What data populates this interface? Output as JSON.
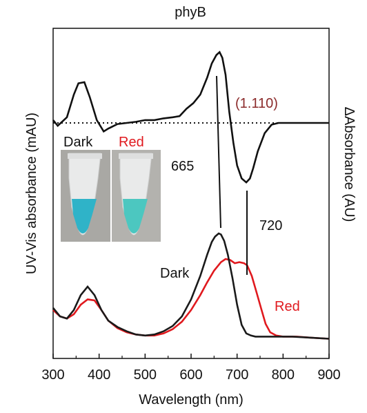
{
  "chart_data": {
    "type": "line",
    "title": "phyB",
    "xlabel": "Wavelength (nm)",
    "ylabel_left": "UV-Vis absorbance (mAU)",
    "ylabel_right": "ΔAbsorbance (AU)",
    "xlim": [
      300,
      900
    ],
    "x_ticks": [
      300,
      400,
      500,
      600,
      700,
      800,
      900
    ],
    "y_ticks_shown": false,
    "grid": false,
    "colors": {
      "dark": "#1a1a1a",
      "red": "#e0191e",
      "annotation": "#8b2a2a",
      "tube_dark": "#2fb3c8",
      "tube_red": "#4cc7c0"
    },
    "difference_panel": {
      "zero_line": "dotted",
      "ylim": [
        -1.2,
        1.3
      ],
      "x": [
        300,
        310,
        330,
        345,
        355,
        368,
        380,
        395,
        410,
        420,
        440,
        460,
        480,
        500,
        520,
        540,
        560,
        575,
        590,
        605,
        620,
        635,
        645,
        655,
        662,
        668,
        675,
        683,
        692,
        700,
        710,
        720,
        728,
        735,
        745,
        760,
        775,
        790,
        810,
        840,
        870,
        900
      ],
      "y": [
        0.05,
        -0.05,
        0.1,
        0.5,
        0.7,
        0.72,
        0.45,
        0.05,
        -0.15,
        -0.1,
        -0.02,
        0.0,
        0.02,
        0.05,
        0.05,
        0.08,
        0.1,
        0.12,
        0.25,
        0.35,
        0.5,
        0.8,
        1.05,
        1.2,
        1.25,
        1.15,
        0.85,
        0.2,
        -0.35,
        -0.75,
        -0.98,
        -1.05,
        -0.98,
        -0.8,
        -0.5,
        -0.18,
        -0.03,
        0.0,
        0.0,
        0.0,
        0.0,
        0.0
      ]
    },
    "absorbance_panel": {
      "ylim": [
        0,
        1.0
      ],
      "series": [
        {
          "name": "Dark",
          "color": "#1a1a1a",
          "x": [
            300,
            315,
            330,
            345,
            360,
            375,
            390,
            405,
            420,
            440,
            460,
            480,
            500,
            520,
            540,
            560,
            580,
            600,
            620,
            635,
            645,
            652,
            660,
            665,
            672,
            680,
            690,
            700,
            710,
            720,
            730,
            740,
            760,
            790,
            820,
            860,
            900
          ],
          "y": [
            0.3,
            0.22,
            0.2,
            0.28,
            0.42,
            0.5,
            0.42,
            0.28,
            0.18,
            0.12,
            0.08,
            0.05,
            0.04,
            0.05,
            0.08,
            0.13,
            0.22,
            0.38,
            0.6,
            0.8,
            0.92,
            0.97,
            1.0,
            0.99,
            0.93,
            0.8,
            0.58,
            0.33,
            0.14,
            0.06,
            0.04,
            0.03,
            0.03,
            0.03,
            0.03,
            0.02,
            0.01
          ]
        },
        {
          "name": "Red",
          "color": "#e0191e",
          "x": [
            300,
            315,
            330,
            345,
            360,
            375,
            390,
            405,
            420,
            440,
            460,
            480,
            500,
            520,
            540,
            560,
            580,
            600,
            620,
            635,
            650,
            665,
            675,
            685,
            695,
            705,
            715,
            722,
            732,
            742,
            752,
            762,
            772,
            785,
            800,
            830,
            860,
            900
          ],
          "y": [
            0.28,
            0.22,
            0.2,
            0.24,
            0.33,
            0.38,
            0.37,
            0.28,
            0.18,
            0.11,
            0.07,
            0.05,
            0.04,
            0.04,
            0.06,
            0.1,
            0.17,
            0.28,
            0.42,
            0.54,
            0.65,
            0.73,
            0.76,
            0.75,
            0.72,
            0.73,
            0.72,
            0.7,
            0.6,
            0.45,
            0.3,
            0.15,
            0.07,
            0.04,
            0.03,
            0.03,
            0.02,
            0.01
          ]
        }
      ]
    },
    "annotations": [
      {
        "text": "(1.110)",
        "kind": "scale-factor"
      },
      {
        "text": "665",
        "wavelength": 665
      },
      {
        "text": "720",
        "wavelength": 720
      }
    ],
    "legend": [
      {
        "text": "Dark",
        "series": "Dark"
      },
      {
        "text": "Red",
        "series": "Red"
      }
    ],
    "inset_photo": {
      "labels": [
        "Dark",
        "Red"
      ]
    }
  }
}
